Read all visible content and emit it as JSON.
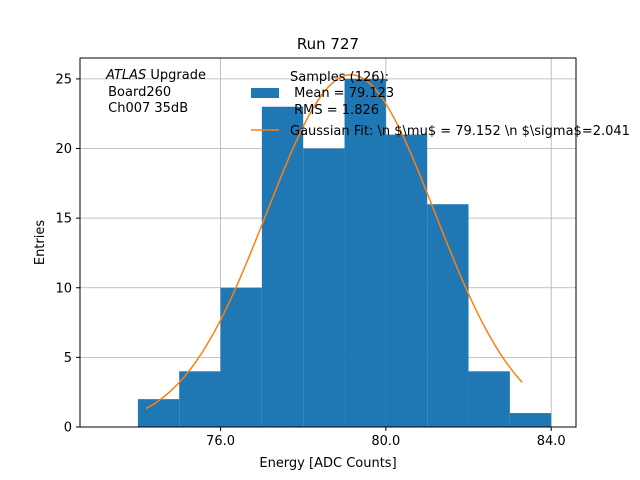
{
  "chart_data": {
    "type": "bar",
    "title": "Run 727",
    "xlabel": "Energy [ADC Counts]",
    "ylabel": "Entries",
    "xlim": [
      72.6,
      84.6
    ],
    "ylim": [
      0,
      26.5
    ],
    "x_ticks": [
      76.0,
      80.0,
      84.0
    ],
    "x_tick_labels": [
      "76.0",
      "80.0",
      "84.0"
    ],
    "y_ticks": [
      0,
      5,
      10,
      15,
      20,
      25
    ],
    "y_tick_labels": [
      "0",
      "5",
      "10",
      "15",
      "20",
      "25"
    ],
    "grid": true,
    "histogram": {
      "bin_edges": [
        74,
        75,
        76,
        77,
        78,
        79,
        80,
        81,
        82,
        83,
        84
      ],
      "counts": [
        2,
        4,
        10,
        23,
        20,
        25,
        21,
        16,
        4,
        1
      ],
      "color": "#1f77b4"
    },
    "fit": {
      "type": "gaussian",
      "mu": 79.152,
      "sigma": 2.041,
      "amplitude": 25.3,
      "x_range": [
        74.2,
        83.3
      ],
      "color": "#ff7f0e"
    },
    "legend": {
      "placement": "top-right",
      "entries": [
        {
          "kind": "patch",
          "lines": [
            "Samples (126):",
            " Mean = 79.123",
            " RMS = 1.826"
          ],
          "color": "#1f77b4"
        },
        {
          "kind": "line",
          "lines": [
            "Gaussian Fit: \\n $\\mu$ = 79.152 \\n $\\sigma$=2.041"
          ],
          "color": "#ff7f0e"
        }
      ]
    },
    "annotation": {
      "italic": "ATLAS",
      "rest": " Upgrade",
      "lines": [
        " Board260",
        " Ch007 35dB"
      ]
    }
  }
}
